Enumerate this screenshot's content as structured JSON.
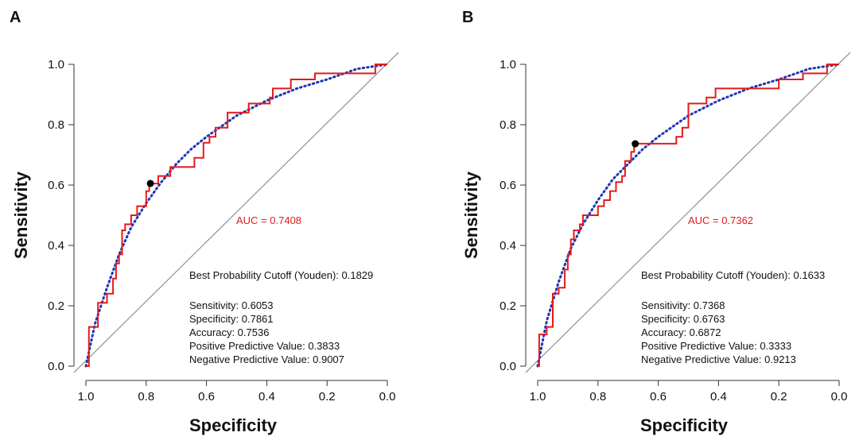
{
  "chart_data": [
    {
      "type": "line",
      "panel": "A",
      "xlabel": "Specificity",
      "ylabel": "Sensitivity",
      "xlim": [
        1.0,
        0.0
      ],
      "ylim": [
        0.0,
        1.0
      ],
      "x_axis_reversed": true,
      "xticks": [
        "1.0",
        "0.8",
        "0.6",
        "0.4",
        "0.2",
        "0.0"
      ],
      "yticks": [
        "0.0",
        "0.2",
        "0.4",
        "0.6",
        "0.8",
        "1.0"
      ],
      "grid": false,
      "auc_label": "AUC = 0.7408",
      "cutoff_label": "Best Probability Cutoff (Youden): 0.1829",
      "metrics": [
        "Sensitivity: 0.6053",
        "Specificity: 0.7861",
        "Accuracy: 0.7536",
        "Positive Predictive Value: 0.3833",
        "Negative Predictive Value: 0.9007"
      ],
      "best_point": {
        "specificity": 0.7861,
        "sensitivity": 0.6053
      },
      "colors": {
        "roc": "#e41a1c",
        "smooth": "#1f35b5",
        "diagonal": "#999999",
        "point": "#000000"
      },
      "series": [
        {
          "values": [
            [
              1.0,
              0.0
            ],
            [
              0.99,
              0.0
            ],
            [
              0.99,
              0.13
            ],
            [
              0.96,
              0.13
            ],
            [
              0.96,
              0.21
            ],
            [
              0.93,
              0.21
            ],
            [
              0.93,
              0.24
            ],
            [
              0.91,
              0.24
            ],
            [
              0.91,
              0.29
            ],
            [
              0.9,
              0.29
            ],
            [
              0.9,
              0.34
            ],
            [
              0.89,
              0.34
            ],
            [
              0.89,
              0.37
            ],
            [
              0.88,
              0.37
            ],
            [
              0.88,
              0.45
            ],
            [
              0.87,
              0.45
            ],
            [
              0.87,
              0.47
            ],
            [
              0.85,
              0.47
            ],
            [
              0.85,
              0.5
            ],
            [
              0.83,
              0.5
            ],
            [
              0.83,
              0.53
            ],
            [
              0.8,
              0.53
            ],
            [
              0.8,
              0.58
            ],
            [
              0.79,
              0.58
            ],
            [
              0.79,
              0.605
            ],
            [
              0.76,
              0.605
            ],
            [
              0.76,
              0.63
            ],
            [
              0.72,
              0.63
            ],
            [
              0.72,
              0.66
            ],
            [
              0.64,
              0.66
            ],
            [
              0.64,
              0.69
            ],
            [
              0.61,
              0.69
            ],
            [
              0.61,
              0.74
            ],
            [
              0.59,
              0.74
            ],
            [
              0.59,
              0.76
            ],
            [
              0.57,
              0.76
            ],
            [
              0.57,
              0.79
            ],
            [
              0.53,
              0.79
            ],
            [
              0.53,
              0.84
            ],
            [
              0.46,
              0.84
            ],
            [
              0.46,
              0.87
            ],
            [
              0.39,
              0.87
            ],
            [
              0.39,
              0.89
            ],
            [
              0.38,
              0.89
            ],
            [
              0.38,
              0.92
            ],
            [
              0.32,
              0.92
            ],
            [
              0.32,
              0.95
            ],
            [
              0.24,
              0.95
            ],
            [
              0.24,
              0.97
            ],
            [
              0.04,
              0.97
            ],
            [
              0.04,
              1.0
            ],
            [
              0.01,
              1.0
            ],
            [
              0.0,
              1.0
            ]
          ]
        },
        {
          "values": [
            [
              1.0,
              0.0
            ],
            [
              0.97,
              0.14
            ],
            [
              0.93,
              0.26
            ],
            [
              0.89,
              0.37
            ],
            [
              0.85,
              0.46
            ],
            [
              0.8,
              0.54
            ],
            [
              0.75,
              0.61
            ],
            [
              0.7,
              0.67
            ],
            [
              0.65,
              0.72
            ],
            [
              0.6,
              0.76
            ],
            [
              0.5,
              0.83
            ],
            [
              0.4,
              0.88
            ],
            [
              0.3,
              0.92
            ],
            [
              0.2,
              0.95
            ],
            [
              0.1,
              0.985
            ],
            [
              0.0,
              1.0
            ]
          ]
        }
      ]
    },
    {
      "type": "line",
      "panel": "B",
      "xlabel": "Specificity",
      "ylabel": "Sensitivity",
      "xlim": [
        1.0,
        0.0
      ],
      "ylim": [
        0.0,
        1.0
      ],
      "x_axis_reversed": true,
      "xticks": [
        "1.0",
        "0.8",
        "0.6",
        "0.4",
        "0.2",
        "0.0"
      ],
      "yticks": [
        "0.0",
        "0.2",
        "0.4",
        "0.6",
        "0.8",
        "1.0"
      ],
      "grid": false,
      "auc_label": "AUC = 0.7362",
      "cutoff_label": "Best Probability Cutoff (Youden): 0.1633",
      "metrics": [
        "Sensitivity: 0.7368",
        "Specificity: 0.6763",
        "Accuracy: 0.6872",
        "Positive Predictive Value: 0.3333",
        "Negative Predictive Value: 0.9213"
      ],
      "best_point": {
        "specificity": 0.6763,
        "sensitivity": 0.7368
      },
      "colors": {
        "roc": "#e41a1c",
        "smooth": "#1f35b5",
        "diagonal": "#999999",
        "point": "#000000"
      },
      "series": [
        {
          "values": [
            [
              1.0,
              0.0
            ],
            [
              0.995,
              0.0
            ],
            [
              0.995,
              0.105
            ],
            [
              0.97,
              0.105
            ],
            [
              0.97,
              0.13
            ],
            [
              0.95,
              0.13
            ],
            [
              0.95,
              0.24
            ],
            [
              0.93,
              0.24
            ],
            [
              0.93,
              0.26
            ],
            [
              0.91,
              0.26
            ],
            [
              0.91,
              0.32
            ],
            [
              0.9,
              0.32
            ],
            [
              0.9,
              0.37
            ],
            [
              0.89,
              0.37
            ],
            [
              0.89,
              0.42
            ],
            [
              0.88,
              0.42
            ],
            [
              0.88,
              0.45
            ],
            [
              0.86,
              0.45
            ],
            [
              0.86,
              0.47
            ],
            [
              0.85,
              0.47
            ],
            [
              0.85,
              0.5
            ],
            [
              0.8,
              0.5
            ],
            [
              0.8,
              0.53
            ],
            [
              0.78,
              0.53
            ],
            [
              0.78,
              0.55
            ],
            [
              0.76,
              0.55
            ],
            [
              0.76,
              0.58
            ],
            [
              0.74,
              0.58
            ],
            [
              0.74,
              0.61
            ],
            [
              0.72,
              0.61
            ],
            [
              0.72,
              0.63
            ],
            [
              0.71,
              0.63
            ],
            [
              0.71,
              0.68
            ],
            [
              0.69,
              0.68
            ],
            [
              0.69,
              0.71
            ],
            [
              0.68,
              0.71
            ],
            [
              0.68,
              0.737
            ],
            [
              0.54,
              0.737
            ],
            [
              0.54,
              0.76
            ],
            [
              0.52,
              0.76
            ],
            [
              0.52,
              0.79
            ],
            [
              0.5,
              0.79
            ],
            [
              0.5,
              0.87
            ],
            [
              0.44,
              0.87
            ],
            [
              0.44,
              0.89
            ],
            [
              0.41,
              0.89
            ],
            [
              0.41,
              0.92
            ],
            [
              0.2,
              0.92
            ],
            [
              0.2,
              0.95
            ],
            [
              0.12,
              0.95
            ],
            [
              0.12,
              0.97
            ],
            [
              0.04,
              0.97
            ],
            [
              0.04,
              1.0
            ],
            [
              0.0,
              1.0
            ]
          ]
        },
        {
          "values": [
            [
              1.0,
              0.0
            ],
            [
              0.97,
              0.15
            ],
            [
              0.93,
              0.28
            ],
            [
              0.89,
              0.39
            ],
            [
              0.85,
              0.47
            ],
            [
              0.8,
              0.55
            ],
            [
              0.75,
              0.62
            ],
            [
              0.7,
              0.67
            ],
            [
              0.65,
              0.72
            ],
            [
              0.6,
              0.76
            ],
            [
              0.5,
              0.83
            ],
            [
              0.4,
              0.88
            ],
            [
              0.3,
              0.92
            ],
            [
              0.2,
              0.95
            ],
            [
              0.1,
              0.985
            ],
            [
              0.0,
              1.0
            ]
          ]
        }
      ]
    }
  ]
}
